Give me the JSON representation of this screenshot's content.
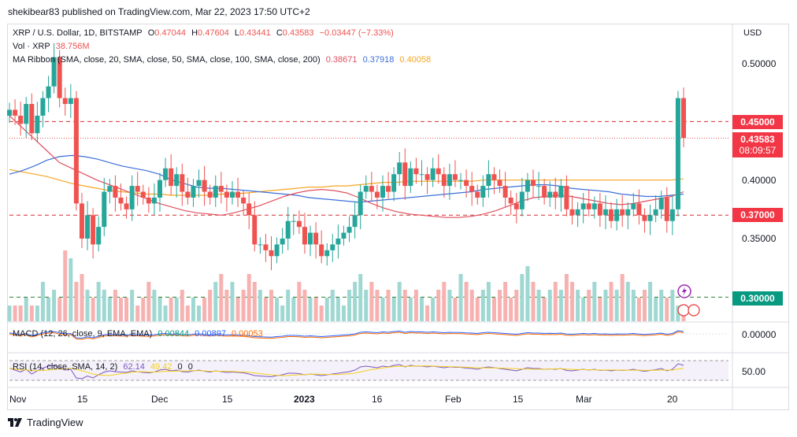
{
  "header": {
    "published": "shekibear83 published on TradingView.com, Mar 22, 2023 17:50 UTC+2"
  },
  "legend": {
    "symbol": "XRP / U.S. Dollar, 1D, BITSTAMP",
    "o_label": "O",
    "o_value": "0.47044",
    "h_label": "H",
    "h_value": "0.47604",
    "l_label": "L",
    "l_value": "0.43441",
    "c_label": "C",
    "c_value": "0.43583",
    "change": "−0.03447 (−7.33%)",
    "vol_label": "Vol · XRP",
    "vol_value": "38.756M",
    "ma_label": "MA Ribbon (SMA, close, 20, SMA, close, 50, SMA, close, 100, SMA, close, 200)",
    "ma_v1": "0.38671",
    "ma_v2": "0.37918",
    "ma_v3": "0.40058",
    "macd_label": "MACD (12, 26, close, 9, EMA, EMA)",
    "macd_v1": "0.00844",
    "macd_v2": "0.00897",
    "macd_v3": "0.00053",
    "rsi_label": "RSI (14, close, SMA, 14, 2)",
    "rsi_v1": "62.14",
    "rsi_v2": "49.42",
    "rsi_v3": "0",
    "rsi_v4": "0"
  },
  "axis": {
    "currency": "USD",
    "price_ticks": [
      "0.50000",
      "0.40000",
      "0.35000"
    ],
    "macd_tick": "0.00000",
    "rsi_tick": "50.00",
    "x_ticks": [
      "Nov",
      "15",
      "Dec",
      "15",
      "2023",
      "16",
      "Feb",
      "15",
      "Mar",
      "20"
    ]
  },
  "price_tags": [
    {
      "value": "0.45000",
      "color": "#f23645"
    },
    {
      "value": "0.43583",
      "color": "#f23645",
      "sub": "08:09:57"
    },
    {
      "value": "0.37000",
      "color": "#f23645"
    },
    {
      "value": "0.30000",
      "color": "#089981"
    }
  ],
  "footer": {
    "brand": "TradingView"
  },
  "colors": {
    "up": "#26a69a",
    "down": "#ef5350",
    "ma20": "#e04f5f",
    "ma50": "#3d6fd9",
    "ma100": "#f5a623",
    "resistance": "#d32f2f",
    "support": "#2e7d32"
  },
  "chart_data": {
    "type": "candlestick",
    "title": "XRP / U.S. Dollar, 1D, BITSTAMP",
    "ylim": [
      0.28,
      0.52
    ],
    "hlines": [
      0.45,
      0.37,
      0.3
    ],
    "last_price": 0.43583,
    "closes": [
      0.46,
      0.455,
      0.448,
      0.465,
      0.44,
      0.455,
      0.47,
      0.48,
      0.505,
      0.47,
      0.465,
      0.47,
      0.38,
      0.35,
      0.37,
      0.345,
      0.36,
      0.39,
      0.395,
      0.385,
      0.38,
      0.375,
      0.395,
      0.39,
      0.385,
      0.38,
      0.385,
      0.4,
      0.41,
      0.395,
      0.405,
      0.39,
      0.385,
      0.395,
      0.4,
      0.39,
      0.385,
      0.395,
      0.39,
      0.385,
      0.39,
      0.385,
      0.38,
      0.37,
      0.345,
      0.345,
      0.34,
      0.335,
      0.345,
      0.35,
      0.365,
      0.365,
      0.36,
      0.345,
      0.355,
      0.345,
      0.335,
      0.34,
      0.345,
      0.35,
      0.355,
      0.36,
      0.37,
      0.39,
      0.395,
      0.39,
      0.385,
      0.395,
      0.39,
      0.405,
      0.415,
      0.395,
      0.41,
      0.405,
      0.405,
      0.4,
      0.41,
      0.405,
      0.395,
      0.405,
      0.4,
      0.4,
      0.395,
      0.39,
      0.385,
      0.395,
      0.405,
      0.4,
      0.395,
      0.385,
      0.38,
      0.375,
      0.39,
      0.4,
      0.395,
      0.395,
      0.385,
      0.39,
      0.385,
      0.395,
      0.375,
      0.37,
      0.375,
      0.38,
      0.375,
      0.38,
      0.37,
      0.375,
      0.365,
      0.375,
      0.37,
      0.375,
      0.38,
      0.37,
      0.365,
      0.37,
      0.375,
      0.385,
      0.365,
      0.375,
      0.47,
      0.436
    ],
    "ma20": [
      0.455,
      0.445,
      0.435,
      0.425,
      0.415,
      0.41,
      0.405,
      0.4,
      0.396,
      0.392,
      0.388,
      0.384,
      0.38,
      0.377,
      0.374,
      0.372,
      0.371,
      0.37,
      0.372,
      0.375,
      0.378,
      0.382,
      0.386,
      0.389,
      0.391,
      0.392,
      0.391,
      0.389,
      0.385,
      0.38,
      0.376,
      0.373,
      0.371,
      0.37,
      0.369,
      0.368,
      0.368,
      0.369,
      0.371,
      0.374,
      0.378,
      0.382,
      0.385,
      0.386,
      0.387,
      0.386,
      0.384,
      0.382,
      0.38,
      0.379,
      0.38,
      0.382,
      0.384,
      0.386,
      0.39
    ],
    "ma50": [
      0.405,
      0.408,
      0.412,
      0.417,
      0.42,
      0.421,
      0.42,
      0.418,
      0.415,
      0.412,
      0.41,
      0.408,
      0.405,
      0.4,
      0.397,
      0.394,
      0.393,
      0.393,
      0.392,
      0.391,
      0.39,
      0.389,
      0.388,
      0.387,
      0.385,
      0.384,
      0.383,
      0.382,
      0.381,
      0.382,
      0.383,
      0.384,
      0.385,
      0.386,
      0.387,
      0.388,
      0.389,
      0.39,
      0.392,
      0.393,
      0.394,
      0.395,
      0.396,
      0.396,
      0.395,
      0.393,
      0.392,
      0.391,
      0.39,
      0.388,
      0.387,
      0.386,
      0.386,
      0.387,
      0.388
    ],
    "ma100": [
      0.409,
      0.407,
      0.405,
      0.403,
      0.4,
      0.397,
      0.395,
      0.393,
      0.391,
      0.39,
      0.389,
      0.388,
      0.388,
      0.387,
      0.387,
      0.387,
      0.387,
      0.388,
      0.388,
      0.389,
      0.39,
      0.391,
      0.392,
      0.393,
      0.394,
      0.394,
      0.395,
      0.395,
      0.396,
      0.397,
      0.398,
      0.398,
      0.399,
      0.399,
      0.399,
      0.399,
      0.399,
      0.399,
      0.4,
      0.4,
      0.4,
      0.4,
      0.4,
      0.4,
      0.4,
      0.4,
      0.4,
      0.4,
      0.4,
      0.4,
      0.4,
      0.4,
      0.4,
      0.4,
      0.401
    ],
    "volumes": [
      0.2,
      0.2,
      0.2,
      0.3,
      0.2,
      0.2,
      0.5,
      0.3,
      0.4,
      0.3,
      0.9,
      0.8,
      0.5,
      0.6,
      0.4,
      0.3,
      0.5,
      0.4,
      0.3,
      0.4,
      0.3,
      0.3,
      0.4,
      0.2,
      0.3,
      0.5,
      0.4,
      0.3,
      0.2,
      0.3,
      0.3,
      0.4,
      0.2,
      0.3,
      0.2,
      0.3,
      0.4,
      0.5,
      0.6,
      0.4,
      0.5,
      0.3,
      0.4,
      0.6,
      0.5,
      0.4,
      0.3,
      0.4,
      0.3,
      0.2,
      0.4,
      0.3,
      0.5,
      0.4,
      0.3,
      0.3,
      0.2,
      0.3,
      0.4,
      0.3,
      0.2,
      0.4,
      0.5,
      0.6,
      0.4,
      0.5,
      0.4,
      0.3,
      0.4,
      0.3,
      0.5,
      0.4,
      0.3,
      0.4,
      0.3,
      0.2,
      0.3,
      0.4,
      0.5,
      0.4,
      0.3,
      0.6,
      0.5,
      0.4,
      0.3,
      0.4,
      0.5,
      0.3,
      0.4,
      0.5,
      0.3,
      0.4,
      0.6,
      0.7,
      0.5,
      0.4,
      0.3,
      0.4,
      0.5,
      0.4,
      0.6,
      0.5,
      0.4,
      0.3,
      0.4,
      0.5,
      0.3,
      0.4,
      0.5,
      0.4,
      0.6,
      0.5,
      0.4,
      0.3,
      0.4,
      0.5,
      0.3,
      0.4,
      0.3,
      0.4,
      0.2,
      0.2
    ],
    "rsi": [
      55,
      50,
      45,
      52,
      40,
      48,
      55,
      60,
      62,
      55,
      50,
      52,
      30,
      28,
      35,
      30,
      38,
      45,
      48,
      46,
      45,
      44,
      48,
      46,
      44,
      43,
      45,
      50,
      52,
      48,
      50,
      46,
      45,
      48,
      50,
      47,
      45,
      48,
      46,
      44,
      45,
      44,
      43,
      40,
      36,
      35,
      34,
      33,
      36,
      38,
      42,
      42,
      41,
      38,
      40,
      38,
      36,
      38,
      40,
      42,
      44,
      46,
      50,
      58,
      60,
      58,
      56,
      60,
      58,
      62,
      64,
      58,
      62,
      60,
      60,
      58,
      60,
      58,
      56,
      58,
      57,
      57,
      55,
      54,
      52,
      56,
      58,
      56,
      54,
      52,
      50,
      48,
      52,
      56,
      54,
      54,
      52,
      53,
      52,
      54,
      49,
      48,
      50,
      52,
      50,
      52,
      49,
      50,
      48,
      50,
      49,
      50,
      52,
      49,
      47,
      49,
      51,
      54,
      48,
      52,
      66,
      62
    ]
  }
}
